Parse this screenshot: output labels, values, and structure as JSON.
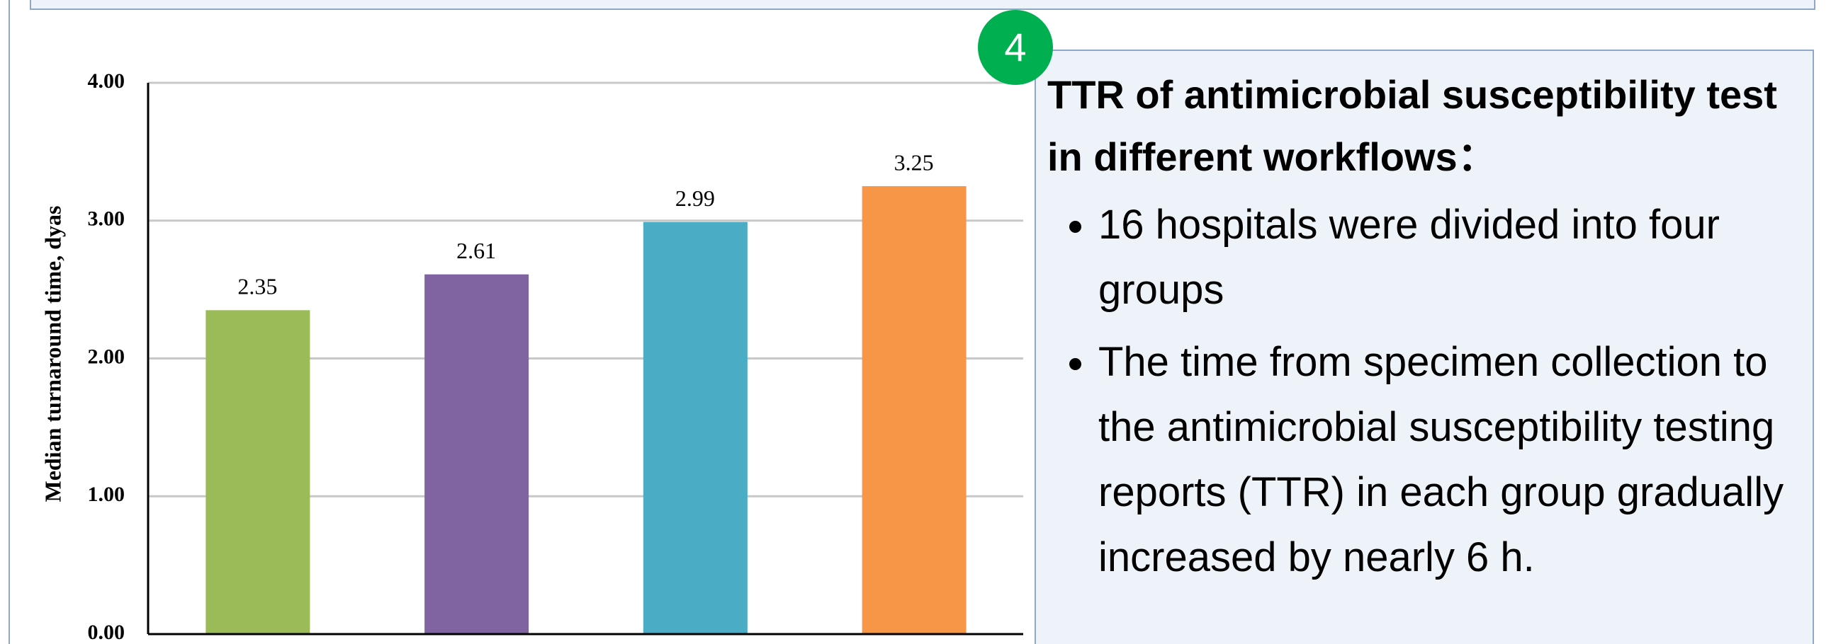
{
  "chart_data": {
    "type": "bar",
    "ylabel": "Median turnaround time, dyas",
    "categories": [
      null,
      null,
      null,
      null
    ],
    "values": [
      2.35,
      2.61,
      2.99,
      3.25
    ],
    "colors": [
      "#9bbb59",
      "#8064a2",
      "#4bacc6",
      "#f79646"
    ],
    "ylim": [
      0,
      4
    ],
    "yticks": [
      {
        "value": 0,
        "label": "0.00"
      },
      {
        "value": 1,
        "label": "1.00"
      },
      {
        "value": 2,
        "label": "2.00"
      },
      {
        "value": 3,
        "label": "3.00"
      },
      {
        "value": 4,
        "label": "4.00"
      }
    ],
    "grid": true
  },
  "panel": {
    "badge": "4",
    "title": "TTR of antimicrobial susceptibility test in different workflows：",
    "bullets": [
      "16 hospitals were divided into four groups",
      "The time from specimen collection to the antimicrobial susceptibility testing reports (TTR) in each group gradually increased by nearly 6 h."
    ]
  }
}
